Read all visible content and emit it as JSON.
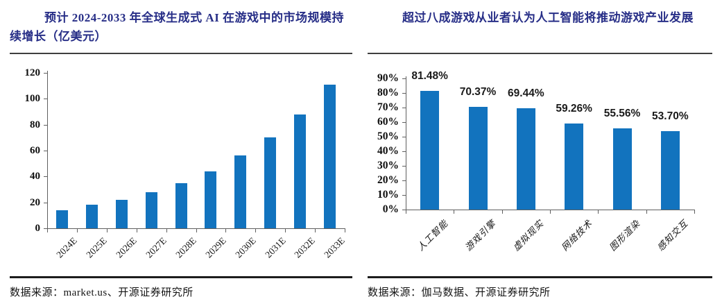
{
  "figure": {
    "background": "#ffffff",
    "accent_title_color": "#272e87",
    "bar_color": "#1273be",
    "axis_color": "#5f5f5f"
  },
  "panels": [
    {
      "title": "预计 2024-2033 年全球生成式 AI 在游戏中的市场规模持续增长（亿美元）",
      "source": "数据来源：market.us、开源证券研究所"
    },
    {
      "title": "超过八成游戏从业者认为人工智能将推动游戏产业发展",
      "source": "数据来源：伽马数据、开源证券研究所"
    }
  ],
  "chart_data": [
    {
      "type": "bar",
      "title": "预计 2024-2033 年全球生成式 AI 在游戏中的市场规模持续增长（亿美元）",
      "categories": [
        "2024E",
        "2025E",
        "2026E",
        "2027E",
        "2028E",
        "2029E",
        "2030E",
        "2031E",
        "2032E",
        "2033E"
      ],
      "values": [
        14,
        18,
        22,
        28,
        35,
        44,
        56,
        70,
        88,
        111
      ],
      "ylabel": "亿美元",
      "ylim": [
        0,
        120
      ],
      "ytick_step": 20,
      "ytick_labels": [
        "0",
        "20",
        "40",
        "60",
        "80",
        "100",
        "120"
      ],
      "ytick_suffix": "",
      "grid": false,
      "legend": false,
      "data_labels": [],
      "bar_color": "#1273be"
    },
    {
      "type": "bar",
      "title": "超过八成游戏从业者认为人工智能将推动游戏产业发展",
      "categories": [
        "人工智能",
        "游戏引擎",
        "虚拟现实",
        "网络技术",
        "图形渲染",
        "感知交互"
      ],
      "values": [
        81.48,
        70.37,
        69.44,
        59.26,
        55.56,
        53.7
      ],
      "ylim": [
        0,
        90
      ],
      "ytick_step": 10,
      "ytick_labels": [
        "0%",
        "10%",
        "20%",
        "30%",
        "40%",
        "50%",
        "60%",
        "70%",
        "80%",
        "90%"
      ],
      "ytick_suffix": "%",
      "grid": false,
      "legend": false,
      "data_labels": [
        "81.48%",
        "70.37%",
        "69.44%",
        "59.26%",
        "55.56%",
        "53.70%"
      ],
      "bar_color": "#1273be"
    }
  ]
}
